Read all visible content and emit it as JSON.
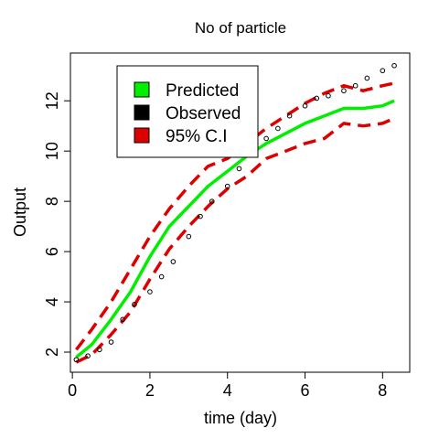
{
  "chart_data": {
    "type": "line",
    "title": "No of particle",
    "xlabel": "time (day)",
    "ylabel": "Output",
    "xlim": [
      -0.05,
      8.7
    ],
    "ylim": [
      1.2,
      13.9
    ],
    "xticks": [
      0,
      2,
      4,
      6,
      8
    ],
    "yticks": [
      2,
      4,
      6,
      8,
      10,
      12
    ],
    "grid": false,
    "legend_position": "top-left inside",
    "series": [
      {
        "name": "Predicted",
        "style": "solid",
        "color": "#00ee00",
        "x": [
          0.1,
          0.5,
          1.0,
          1.5,
          2.0,
          2.5,
          3.0,
          3.5,
          4.0,
          4.5,
          5.0,
          5.5,
          6.0,
          6.5,
          7.0,
          7.5,
          8.0,
          8.3
        ],
        "y": [
          1.8,
          2.3,
          3.3,
          4.4,
          5.8,
          7.0,
          7.8,
          8.6,
          9.2,
          9.8,
          10.3,
          10.7,
          11.1,
          11.4,
          11.7,
          11.7,
          11.8,
          12.0
        ]
      },
      {
        "name": "Observed",
        "style": "points",
        "color": "#000000",
        "x": [
          0.1,
          0.4,
          0.7,
          1.0,
          1.3,
          1.6,
          2.0,
          2.3,
          2.6,
          3.0,
          3.3,
          3.6,
          4.0,
          4.3,
          4.6,
          5.0,
          5.3,
          5.6,
          6.0,
          6.3,
          6.6,
          7.0,
          7.3,
          7.6,
          8.0,
          8.3
        ],
        "y": [
          1.7,
          1.85,
          2.1,
          2.4,
          3.3,
          3.9,
          4.4,
          5.0,
          5.6,
          6.6,
          7.4,
          8.0,
          8.6,
          9.3,
          10.0,
          10.5,
          10.9,
          11.4,
          11.8,
          12.1,
          12.2,
          12.4,
          12.6,
          12.9,
          13.2,
          13.4
        ]
      },
      {
        "name": "95% C.I",
        "style": "dashed",
        "color": "#dd0000",
        "x": [
          0.1,
          0.5,
          1.0,
          1.5,
          2.0,
          2.5,
          3.0,
          3.5,
          4.0,
          4.5,
          5.0,
          5.5,
          6.0,
          6.5,
          7.0,
          7.5,
          8.0,
          8.3
        ],
        "y": [
          2.1,
          2.9,
          4.0,
          5.3,
          6.6,
          7.7,
          8.6,
          9.4,
          9.7,
          10.3,
          10.9,
          11.4,
          11.9,
          12.3,
          12.6,
          12.4,
          12.6,
          12.7
        ]
      },
      {
        "name": "95% C.I",
        "style": "dashed",
        "color": "#dd0000",
        "x": [
          0.1,
          0.5,
          1.0,
          1.5,
          2.0,
          2.5,
          3.0,
          3.5,
          4.0,
          4.5,
          5.0,
          5.5,
          6.0,
          6.5,
          7.0,
          7.5,
          8.0,
          8.3
        ],
        "y": [
          1.6,
          1.9,
          2.7,
          3.6,
          4.9,
          6.1,
          7.0,
          7.8,
          8.5,
          9.0,
          9.7,
          10.0,
          10.3,
          10.5,
          11.1,
          11.0,
          11.1,
          11.3
        ]
      }
    ],
    "legend": [
      {
        "label": "Predicted",
        "color": "#00ee00"
      },
      {
        "label": "Observed",
        "color": "#000000"
      },
      {
        "label": "95% C.I",
        "color": "#dd0000"
      }
    ]
  }
}
